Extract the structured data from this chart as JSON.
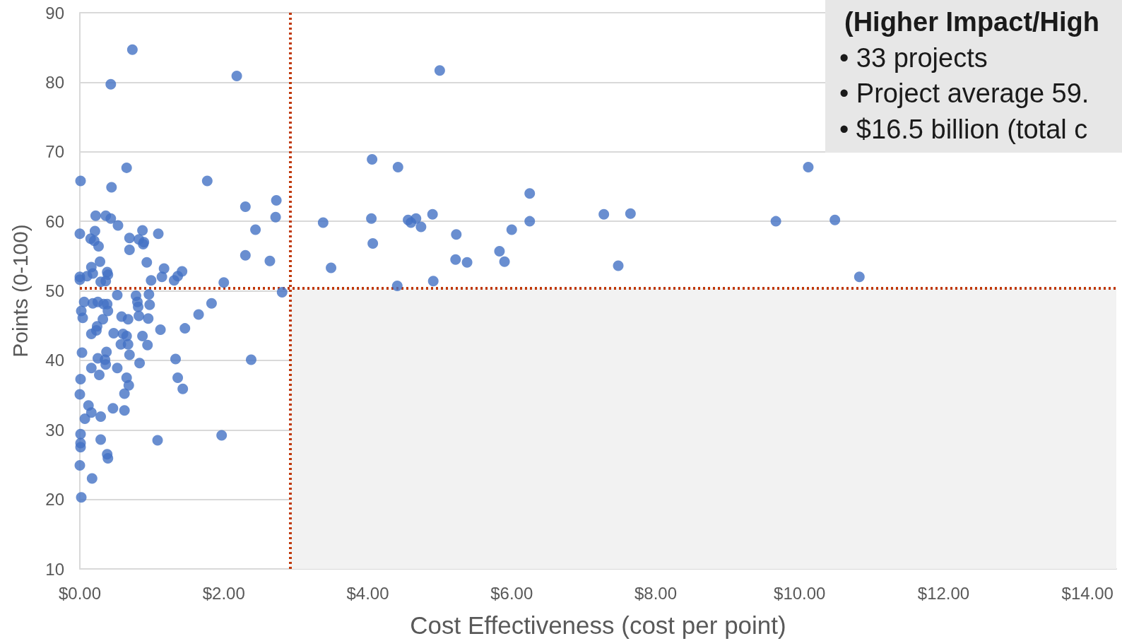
{
  "chart_data": {
    "type": "scatter",
    "xlabel": "Cost Effectiveness (cost per point)",
    "ylabel": "Points (0-100)",
    "annotations": [
      "(Higher Impact/High",
      "• 33 projects",
      "• Project average 59.",
      "• $16.5 billion (total c"
    ],
    "xlim": [
      0,
      14.4
    ],
    "ylim": [
      10,
      90
    ],
    "xticks": [
      {
        "value": 0,
        "label": "$0.00"
      },
      {
        "value": 2,
        "label": "$2.00"
      },
      {
        "value": 4,
        "label": "$4.00"
      },
      {
        "value": 6,
        "label": "$6.00"
      },
      {
        "value": 8,
        "label": "$8.00"
      },
      {
        "value": 10,
        "label": "$10.00"
      },
      {
        "value": 12,
        "label": "$12.00"
      },
      {
        "value": 14,
        "label": "$14.00"
      }
    ],
    "yticks": [
      10,
      20,
      30,
      40,
      50,
      60,
      70,
      80,
      90
    ],
    "grid": "y",
    "marker": "circle",
    "ref_lines": [
      {
        "axis": "x",
        "value": 2.92,
        "color": "#c0390b",
        "line_style": "dotted"
      },
      {
        "axis": "y",
        "value": 50.4,
        "color": "#c0390b",
        "line_style": "dotted"
      }
    ],
    "bands": [
      {
        "axis": "x",
        "from": 2.92,
        "to": 14.4,
        "color": "#f2f2f2"
      }
    ],
    "series": [
      {
        "color": "#4472c4",
        "x": [
          0.73,
          0.43,
          2.18,
          5.0,
          0.01,
          0.65,
          0.44,
          1.77,
          2.3,
          2.73,
          2.72,
          2.44,
          2.3,
          2.64,
          2.0,
          2.81,
          2.38,
          1.97,
          4.06,
          4.42,
          3.38,
          4.05,
          4.07,
          3.49,
          4.41,
          4.56,
          4.6,
          4.67,
          4.74,
          4.9,
          4.91,
          5.23,
          5.22,
          5.38,
          5.83,
          5.9,
          6.0,
          6.25,
          6.25,
          7.28,
          7.65,
          7.48,
          9.67,
          10.12,
          10.49,
          10.83,
          0.22,
          0.36,
          0.43,
          0.53,
          0.0,
          0.21,
          0.15,
          0.2,
          0.26,
          0.69,
          0.87,
          0.82,
          0.89,
          0.88,
          1.09,
          0.69,
          0.28,
          0.93,
          0.16,
          0.38,
          0.39,
          0.18,
          0.1,
          0.0,
          0.0,
          0.29,
          0.36,
          0.99,
          1.17,
          1.14,
          1.31,
          1.36,
          1.42,
          0.06,
          0.02,
          0.04,
          0.18,
          0.25,
          0.33,
          0.38,
          0.39,
          0.52,
          0.78,
          0.8,
          0.81,
          0.96,
          0.97,
          0.58,
          0.67,
          0.82,
          0.95,
          1.83,
          1.65,
          0.32,
          0.24,
          0.23,
          0.16,
          0.47,
          0.6,
          0.65,
          0.57,
          0.67,
          0.87,
          0.94,
          1.12,
          1.46,
          0.69,
          0.03,
          0.37,
          0.25,
          0.35,
          0.36,
          0.83,
          1.33,
          0.16,
          0.27,
          0.52,
          0.65,
          0.68,
          0.62,
          0.01,
          0.0,
          1.36,
          1.43,
          0.12,
          0.16,
          0.07,
          0.29,
          0.46,
          0.62,
          0.01,
          0.01,
          0.01,
          0.29,
          1.08,
          0.38,
          0.39,
          0.0,
          0.17,
          0.02
        ],
        "values": [
          84.7,
          79.7,
          80.9,
          81.7,
          65.8,
          67.7,
          64.9,
          65.8,
          62.1,
          63.0,
          60.6,
          58.8,
          55.1,
          54.3,
          51.2,
          49.8,
          40.1,
          29.2,
          68.9,
          67.8,
          59.8,
          60.4,
          56.8,
          53.3,
          50.7,
          60.2,
          59.8,
          60.4,
          59.2,
          61.0,
          51.4,
          58.1,
          54.5,
          54.1,
          55.7,
          54.2,
          58.8,
          64.0,
          60.0,
          61.0,
          61.1,
          53.6,
          60.0,
          67.8,
          60.2,
          52.0,
          60.8,
          60.8,
          60.4,
          59.4,
          58.2,
          58.6,
          57.5,
          57.2,
          56.4,
          57.6,
          58.7,
          57.4,
          57.0,
          56.7,
          58.2,
          55.9,
          54.2,
          54.1,
          53.4,
          52.7,
          52.3,
          52.5,
          52.1,
          52.0,
          51.6,
          51.3,
          51.4,
          51.5,
          53.2,
          52.0,
          51.5,
          52.1,
          52.8,
          48.4,
          47.1,
          46.1,
          48.2,
          48.4,
          48.1,
          48.1,
          47.1,
          49.4,
          49.3,
          48.4,
          47.7,
          49.5,
          48.0,
          46.3,
          45.9,
          46.4,
          46.0,
          48.2,
          46.6,
          45.9,
          44.9,
          44.3,
          43.8,
          43.9,
          43.8,
          43.5,
          42.3,
          42.3,
          43.5,
          42.2,
          44.4,
          44.6,
          40.8,
          41.1,
          41.2,
          40.3,
          40.1,
          39.4,
          39.6,
          40.2,
          38.9,
          37.9,
          38.9,
          37.5,
          36.4,
          35.2,
          37.3,
          35.1,
          37.5,
          35.9,
          33.5,
          32.5,
          31.6,
          31.9,
          33.1,
          32.8,
          29.4,
          28.1,
          27.5,
          28.6,
          28.5,
          26.5,
          25.9,
          24.9,
          23.0,
          20.3
        ]
      }
    ]
  }
}
